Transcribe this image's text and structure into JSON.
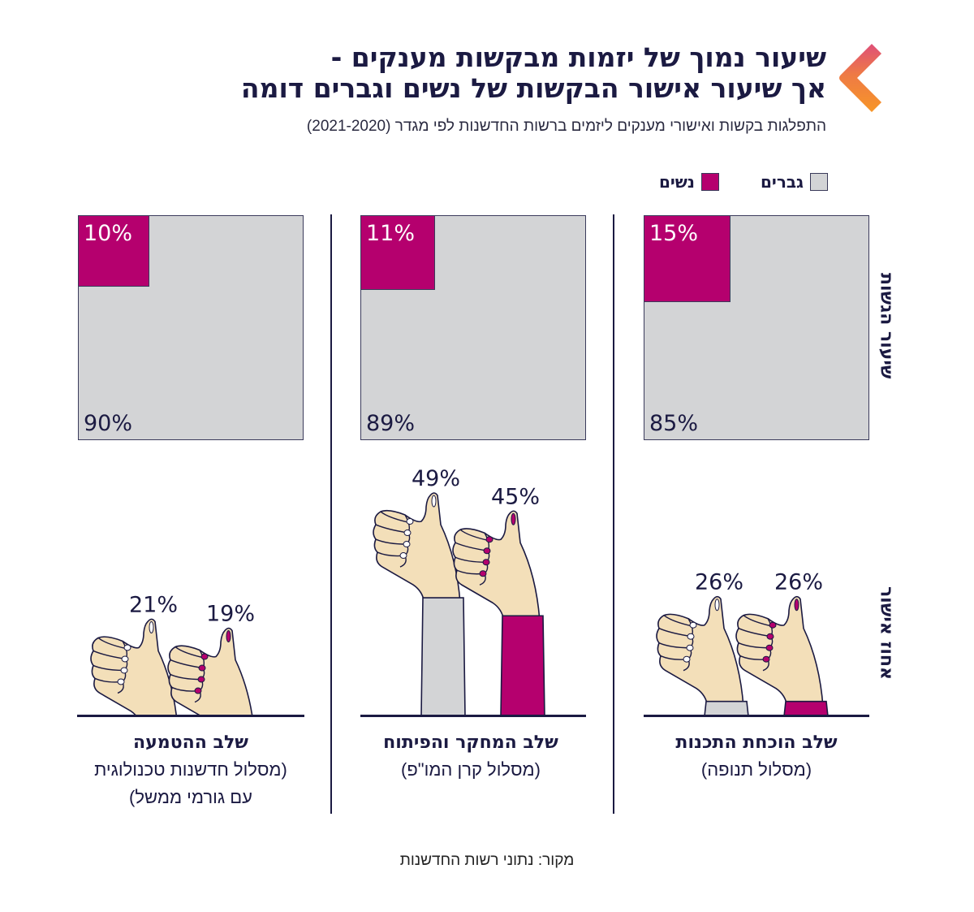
{
  "header": {
    "title_line1": "שיעור נמוך של יזמות מבקשות מענקים -",
    "title_line2": "אך שיעור אישור הבקשות של נשים וגברים דומה",
    "subtitle": "התפלגות בקשות ואישורי מענקים ליזמים ברשות החדשנות לפי מגדר (2021-2020)",
    "logo_icon": "chevron-left-logo-icon"
  },
  "legend": {
    "men": "גברים",
    "women": "נשים"
  },
  "row_labels": {
    "submissions": "שיעור הגשות",
    "approval": "אחוז אישור"
  },
  "colors": {
    "women": "#b5006e",
    "men": "#d3d4d6",
    "text": "#1b1a42",
    "skin": "#f3dfb9"
  },
  "chart_data": {
    "type": "table",
    "title": "שיעור נמוך של יזמות מבקשות מענקים - אך שיעור אישור הבקשות של נשים וגברים דומה",
    "subtitle": "התפלגות בקשות ואישורי מענקים ליזמים ברשות החדשנות לפי מגדר (2021-2020)",
    "series_names": [
      "גברים",
      "נשים"
    ],
    "stages": [
      {
        "name": "שלב הוכחת התכנות",
        "track": "(מסלול תנופה)",
        "submissions": {
          "women": 15,
          "men": 85,
          "women_label": "15%",
          "men_label": "85%"
        },
        "approval": {
          "men": 26,
          "women": 26,
          "men_label": "26%",
          "women_label": "26%"
        }
      },
      {
        "name": "שלב המחקר והפיתוח",
        "track": "(מסלול קרן המו\"פ)",
        "submissions": {
          "women": 11,
          "men": 89,
          "women_label": "11%",
          "men_label": "89%"
        },
        "approval": {
          "men": 49,
          "women": 45,
          "men_label": "49%",
          "women_label": "45%"
        }
      },
      {
        "name": "שלב ההטמעה",
        "track_line1": "(מסלול חדשנות טכנולוגית",
        "track_line2": "עם גורמי ממשל)",
        "submissions": {
          "women": 10,
          "men": 90,
          "women_label": "10%",
          "men_label": "90%"
        },
        "approval": {
          "men": 21,
          "women": 19,
          "men_label": "21%",
          "women_label": "19%"
        }
      }
    ]
  },
  "source": "מקור: נתוני רשות החדשנות"
}
